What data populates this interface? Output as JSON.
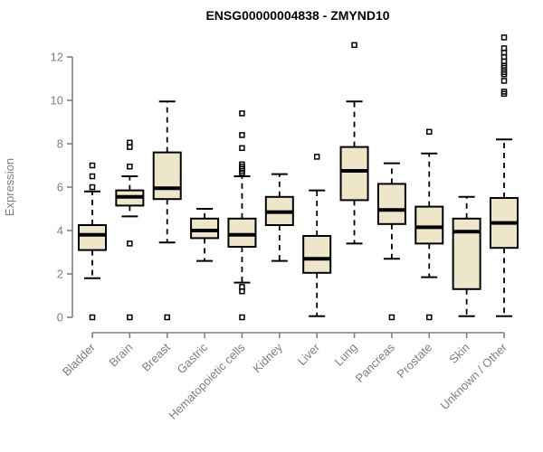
{
  "chart_data": {
    "type": "boxplot",
    "title": "ENSG00000004838 - ZMYND10",
    "xlabel": "",
    "ylabel": "Expression",
    "ylim": [
      0,
      13
    ],
    "yticks": [
      0,
      2,
      4,
      6,
      8,
      10,
      12
    ],
    "grid": false,
    "legend": "none",
    "colors": {
      "box_fill": "#EDE6C9",
      "box_stroke": "#000000",
      "median_stroke": "#000000",
      "whisker_stroke": "#000000",
      "outlier_stroke": "#000000",
      "axis_color": "#7f7f7f",
      "title_color": "#000000",
      "background": "#ffffff"
    },
    "categories": [
      "Bladder",
      "Brain",
      "Breast",
      "Gastric",
      "Hematopoietic cells",
      "Kidney",
      "Liver",
      "Lung",
      "Pancreas",
      "Prostate",
      "Skin",
      "Unknown / Other"
    ],
    "series": [
      {
        "label": "Bladder",
        "whislo": 1.8,
        "q1": 3.1,
        "med": 3.8,
        "q3": 4.25,
        "whishi": 5.8,
        "outliers": [
          6.0,
          6.5,
          7.0,
          0
        ]
      },
      {
        "label": "Brain",
        "whislo": 4.65,
        "q1": 5.15,
        "med": 5.55,
        "q3": 5.85,
        "whishi": 6.5,
        "outliers": [
          6.95,
          7.85,
          8.05,
          3.4,
          0
        ]
      },
      {
        "label": "Breast",
        "whislo": 3.45,
        "q1": 5.45,
        "med": 5.95,
        "q3": 7.6,
        "whishi": 9.95,
        "outliers": [
          0
        ]
      },
      {
        "label": "Gastric",
        "whislo": 2.6,
        "q1": 3.65,
        "med": 4.0,
        "q3": 4.55,
        "whishi": 5.0,
        "outliers": []
      },
      {
        "label": "Hematopoietic cells",
        "whislo": 1.6,
        "q1": 3.25,
        "med": 3.8,
        "q3": 4.55,
        "whishi": 6.5,
        "outliers": [
          9.4,
          8.4,
          7.8,
          7.05,
          6.95,
          6.85,
          6.75,
          6.65,
          1.4,
          1.2,
          0
        ]
      },
      {
        "label": "Kidney",
        "whislo": 2.6,
        "q1": 4.25,
        "med": 4.85,
        "q3": 5.55,
        "whishi": 6.6,
        "outliers": []
      },
      {
        "label": "Liver",
        "whislo": 0.05,
        "q1": 2.05,
        "med": 2.7,
        "q3": 3.75,
        "whishi": 5.85,
        "outliers": [
          7.4
        ]
      },
      {
        "label": "Lung",
        "whislo": 3.4,
        "q1": 5.4,
        "med": 6.75,
        "q3": 7.85,
        "whishi": 9.95,
        "outliers": [
          12.55
        ]
      },
      {
        "label": "Pancreas",
        "whislo": 2.7,
        "q1": 4.3,
        "med": 4.95,
        "q3": 6.15,
        "whishi": 7.1,
        "outliers": [
          0
        ]
      },
      {
        "label": "Prostate",
        "whislo": 1.85,
        "q1": 3.4,
        "med": 4.15,
        "q3": 5.1,
        "whishi": 7.55,
        "outliers": [
          8.55,
          0
        ]
      },
      {
        "label": "Skin",
        "whislo": 0.05,
        "q1": 1.3,
        "med": 3.95,
        "q3": 4.55,
        "whishi": 5.55,
        "outliers": []
      },
      {
        "label": "Unknown / Other",
        "whislo": 0.05,
        "q1": 3.2,
        "med": 4.35,
        "q3": 5.5,
        "whishi": 8.2,
        "outliers": [
          12.9,
          12.4,
          12.2,
          12.0,
          11.8,
          11.6,
          11.5,
          11.3,
          11.2,
          10.9,
          10.4,
          10.3
        ]
      }
    ]
  }
}
